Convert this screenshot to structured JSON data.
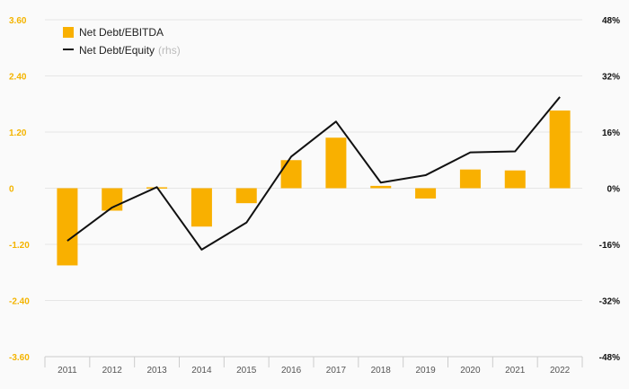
{
  "chart_data": {
    "type": "bar+line",
    "categories": [
      "2011",
      "2012",
      "2013",
      "2014",
      "2015",
      "2016",
      "2017",
      "2018",
      "2019",
      "2020",
      "2021",
      "2022"
    ],
    "series": [
      {
        "name": "Net Debt/EBITDA",
        "type": "bar",
        "axis": "left",
        "values": [
          -1.65,
          -0.48,
          0.02,
          -0.82,
          -0.32,
          0.6,
          1.08,
          0.05,
          -0.22,
          0.4,
          0.38,
          1.66
        ]
      },
      {
        "name": "Net Debt/Equity",
        "type": "line",
        "axis": "right",
        "values": [
          -15,
          -5.5,
          0.3,
          -17.5,
          -9.8,
          9,
          19,
          1.6,
          3.7,
          10.2,
          10.5,
          26
        ]
      }
    ],
    "y_left": {
      "ylim": [
        -3.6,
        3.6
      ],
      "ticks": [
        "3.60",
        "2.40",
        "1.20",
        "0",
        "-1.20",
        "-2.40",
        "-3.60"
      ]
    },
    "y_right": {
      "ylim": [
        -48,
        48
      ],
      "ticks": [
        "48%",
        "32%",
        "16%",
        "0%",
        "-16%",
        "-32%",
        "-48%"
      ]
    },
    "legend": {
      "position": "top-left",
      "items": [
        "Net Debt/EBITDA",
        "Net Debt/Equity"
      ],
      "rhs_note": "(rhs)"
    },
    "grid": true,
    "colors": {
      "bar": "#f9b000",
      "line": "#111111",
      "left_axis": "#f4b400",
      "grid": "#e6e6e6"
    }
  }
}
